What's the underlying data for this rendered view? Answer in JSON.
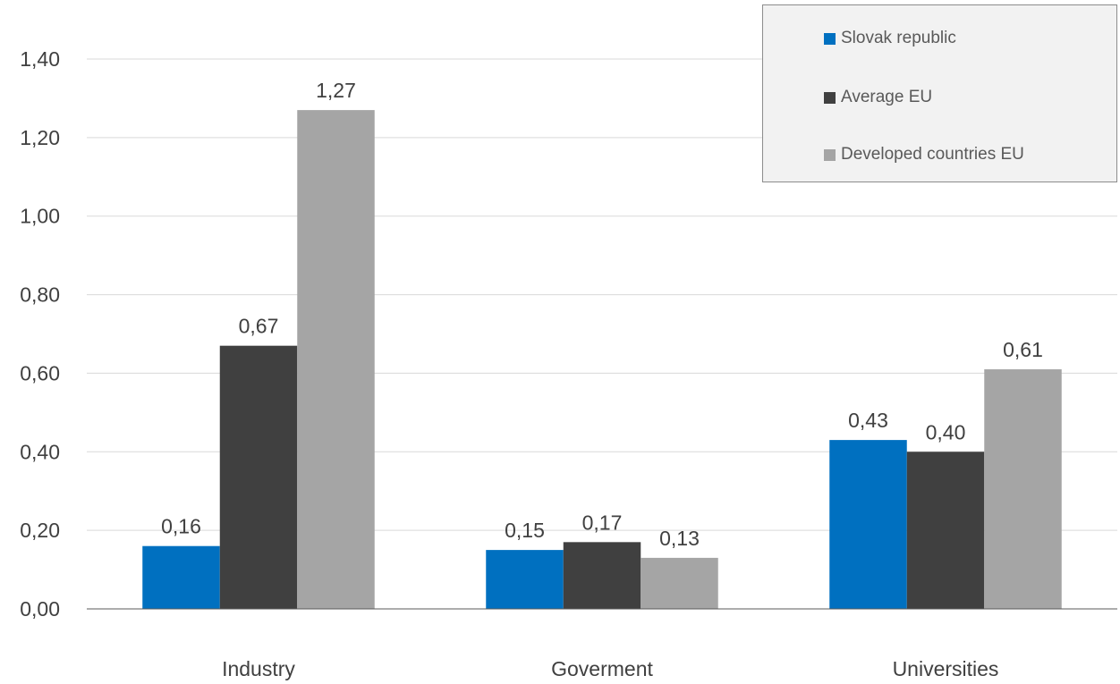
{
  "chart_data": {
    "type": "bar",
    "categories": [
      "Industry",
      "Goverment",
      "Universities"
    ],
    "series": [
      {
        "name": "Slovak republic",
        "values": [
          0.16,
          0.15,
          0.43
        ],
        "labels": [
          "0,16",
          "0,15",
          "0,43"
        ]
      },
      {
        "name": "Average EU",
        "values": [
          0.67,
          0.17,
          0.4
        ],
        "labels": [
          "0,67",
          "0,17",
          "0,40"
        ]
      },
      {
        "name": "Developed countries EU",
        "values": [
          1.27,
          0.13,
          0.61
        ],
        "labels": [
          "1,27",
          "0,13",
          "0,61"
        ]
      }
    ],
    "ylim": [
      0,
      1.4
    ],
    "yticks": [
      0,
      0.2,
      0.4,
      0.6,
      0.8,
      1.0,
      1.2,
      1.4
    ],
    "ytick_labels": [
      "0,00",
      "0,20",
      "0,40",
      "0,60",
      "0,80",
      "1,00",
      "1,20",
      "1,40"
    ],
    "title": "",
    "xlabel": "",
    "ylabel": "",
    "grid": true,
    "legend_position": "top-right",
    "colors": [
      "#0070c0",
      "#404040",
      "#a5a5a5"
    ],
    "gridline_color": "#d9d9d9",
    "axis_line_color": "#595959"
  }
}
